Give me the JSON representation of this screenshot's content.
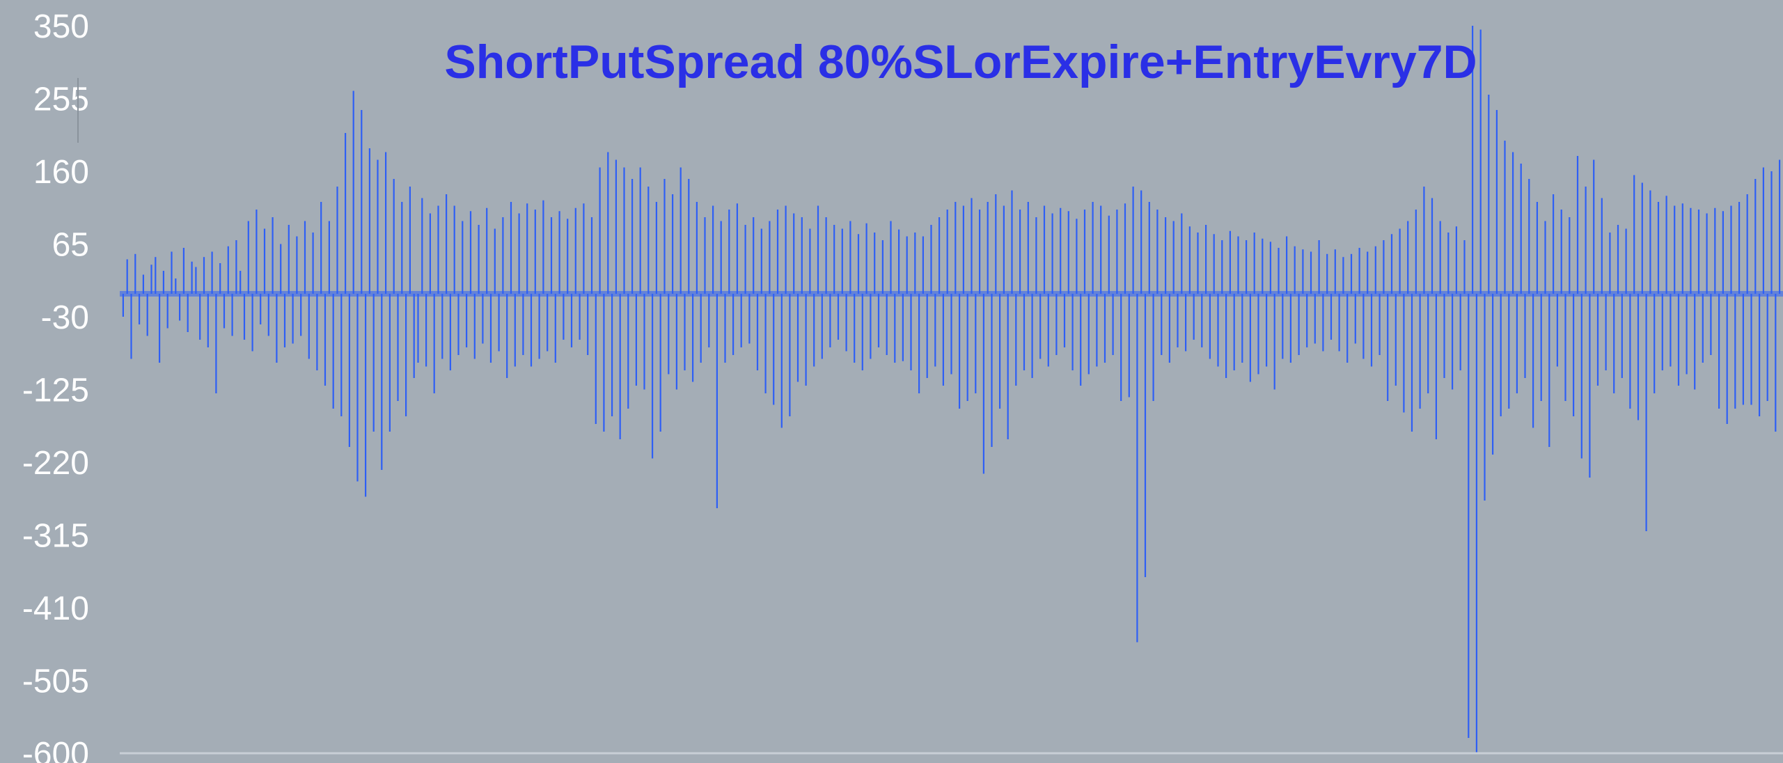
{
  "colors": {
    "background": "#a4adb6",
    "series": "#2e5ff5",
    "title": "#2a2fe6",
    "axis_text": "#ffffff"
  },
  "chart_data": {
    "type": "bar",
    "title": "ShortPutSpread 80%SLorExpire+EntryEvry7D",
    "xlabel": "",
    "ylabel": "",
    "ylim": [
      -600,
      350
    ],
    "yticks": [
      "350",
      "255",
      "160",
      "65",
      "-30",
      "-125",
      "-220",
      "-315",
      "-410",
      "-505",
      "-600"
    ],
    "grid": false,
    "legend": "none",
    "series": [
      {
        "values": [
          -30,
          45,
          -85,
          52,
          -40,
          25,
          -55,
          38,
          48,
          -90,
          30,
          -45,
          55,
          20,
          -35,
          60,
          -50,
          42,
          35,
          -60,
          48,
          -70,
          55,
          -130,
          40,
          -45,
          62,
          -55,
          70,
          30,
          -60,
          95,
          -75,
          110,
          -40,
          85,
          -55,
          100,
          -90,
          65,
          -70,
          90,
          -65,
          75,
          -55,
          95,
          -85,
          80,
          -100,
          120,
          -120,
          95,
          -150,
          140,
          -160,
          210,
          -200,
          265,
          -245,
          240,
          -265,
          190,
          -180,
          175,
          -230,
          185,
          -180,
          150,
          -140,
          120,
          -160,
          140,
          -110,
          -90,
          125,
          -95,
          105,
          -130,
          115,
          -85,
          130,
          -100,
          115,
          -80,
          95,
          -70,
          108,
          -85,
          90,
          -65,
          112,
          -90,
          85,
          -75,
          100,
          -110,
          120,
          -95,
          105,
          -80,
          118,
          -95,
          110,
          -85,
          122,
          -75,
          100,
          -90,
          108,
          -60,
          98,
          -70,
          112,
          -60,
          118,
          -80,
          100,
          -170,
          165,
          -180,
          185,
          -160,
          175,
          -190,
          165,
          -150,
          150,
          -120,
          165,
          -125,
          140,
          -215,
          120,
          -180,
          150,
          -105,
          130,
          -125,
          165,
          -100,
          150,
          -115,
          120,
          -90,
          100,
          -70,
          115,
          -280,
          95,
          -90,
          110,
          -80,
          118,
          -70,
          90,
          -65,
          100,
          -100,
          85,
          -130,
          95,
          -145,
          110,
          -175,
          115,
          -160,
          105,
          -115,
          100,
          -120,
          85,
          -95,
          115,
          -85,
          100,
          -70,
          90,
          -60,
          85,
          -75,
          95,
          -90,
          78,
          -100,
          92,
          -85,
          80,
          -70,
          70,
          -80,
          95,
          -90,
          84,
          -88,
          75,
          -100,
          80,
          -130,
          75,
          -110,
          90,
          -95,
          100,
          -120,
          110,
          -105,
          120,
          -150,
          115,
          -140,
          125,
          -130,
          110,
          -235,
          120,
          -200,
          130,
          -150,
          115,
          -190,
          135,
          -120,
          110,
          -100,
          120,
          -110,
          100,
          -85,
          115,
          -95,
          105,
          -80,
          112,
          -70,
          108,
          -100,
          98,
          -120,
          110,
          -105,
          120,
          -95,
          115,
          -90,
          102,
          -80,
          110,
          -140,
          118,
          -135,
          140,
          -455,
          135,
          -370,
          120,
          -140,
          110,
          -80,
          100,
          -90,
          95,
          -70,
          105,
          -75,
          88,
          -60,
          80,
          -70,
          90,
          -85,
          78,
          -95,
          70,
          -110,
          82,
          -100,
          75,
          -90,
          70,
          -115,
          80,
          -105,
          72,
          -95,
          68,
          -125,
          60,
          -85,
          75,
          -90,
          62,
          -80,
          58,
          -70,
          55,
          -65,
          70,
          -75,
          52,
          -60,
          58,
          -75,
          48,
          -90,
          52,
          -65,
          60,
          -85,
          55,
          -95,
          62,
          -80,
          70,
          -140,
          78,
          -120,
          85,
          -155,
          95,
          -180,
          110,
          -150,
          140,
          -130,
          125,
          -190,
          95,
          -110,
          80,
          -125,
          88,
          -100,
          70,
          -580,
          350,
          -600,
          345,
          -270,
          260,
          -210,
          240,
          -160,
          200,
          -150,
          185,
          -130,
          170,
          -110,
          150,
          -175,
          120,
          -140,
          95,
          -200,
          130,
          -95,
          110,
          -140,
          100,
          -160,
          180,
          -215,
          140,
          -240,
          175,
          -120,
          125,
          -100,
          80,
          -130,
          90,
          -110,
          85,
          -150,
          155,
          -165,
          145,
          -310,
          135,
          -130,
          120,
          -100,
          128,
          -95,
          115,
          -120,
          118,
          -105,
          112,
          -125,
          110,
          -90,
          105,
          -80,
          112,
          -150,
          108,
          -170,
          115,
          -150,
          120,
          -145,
          130,
          -145,
          150,
          -160,
          165,
          -140,
          160,
          -180,
          175
        ]
      }
    ]
  }
}
